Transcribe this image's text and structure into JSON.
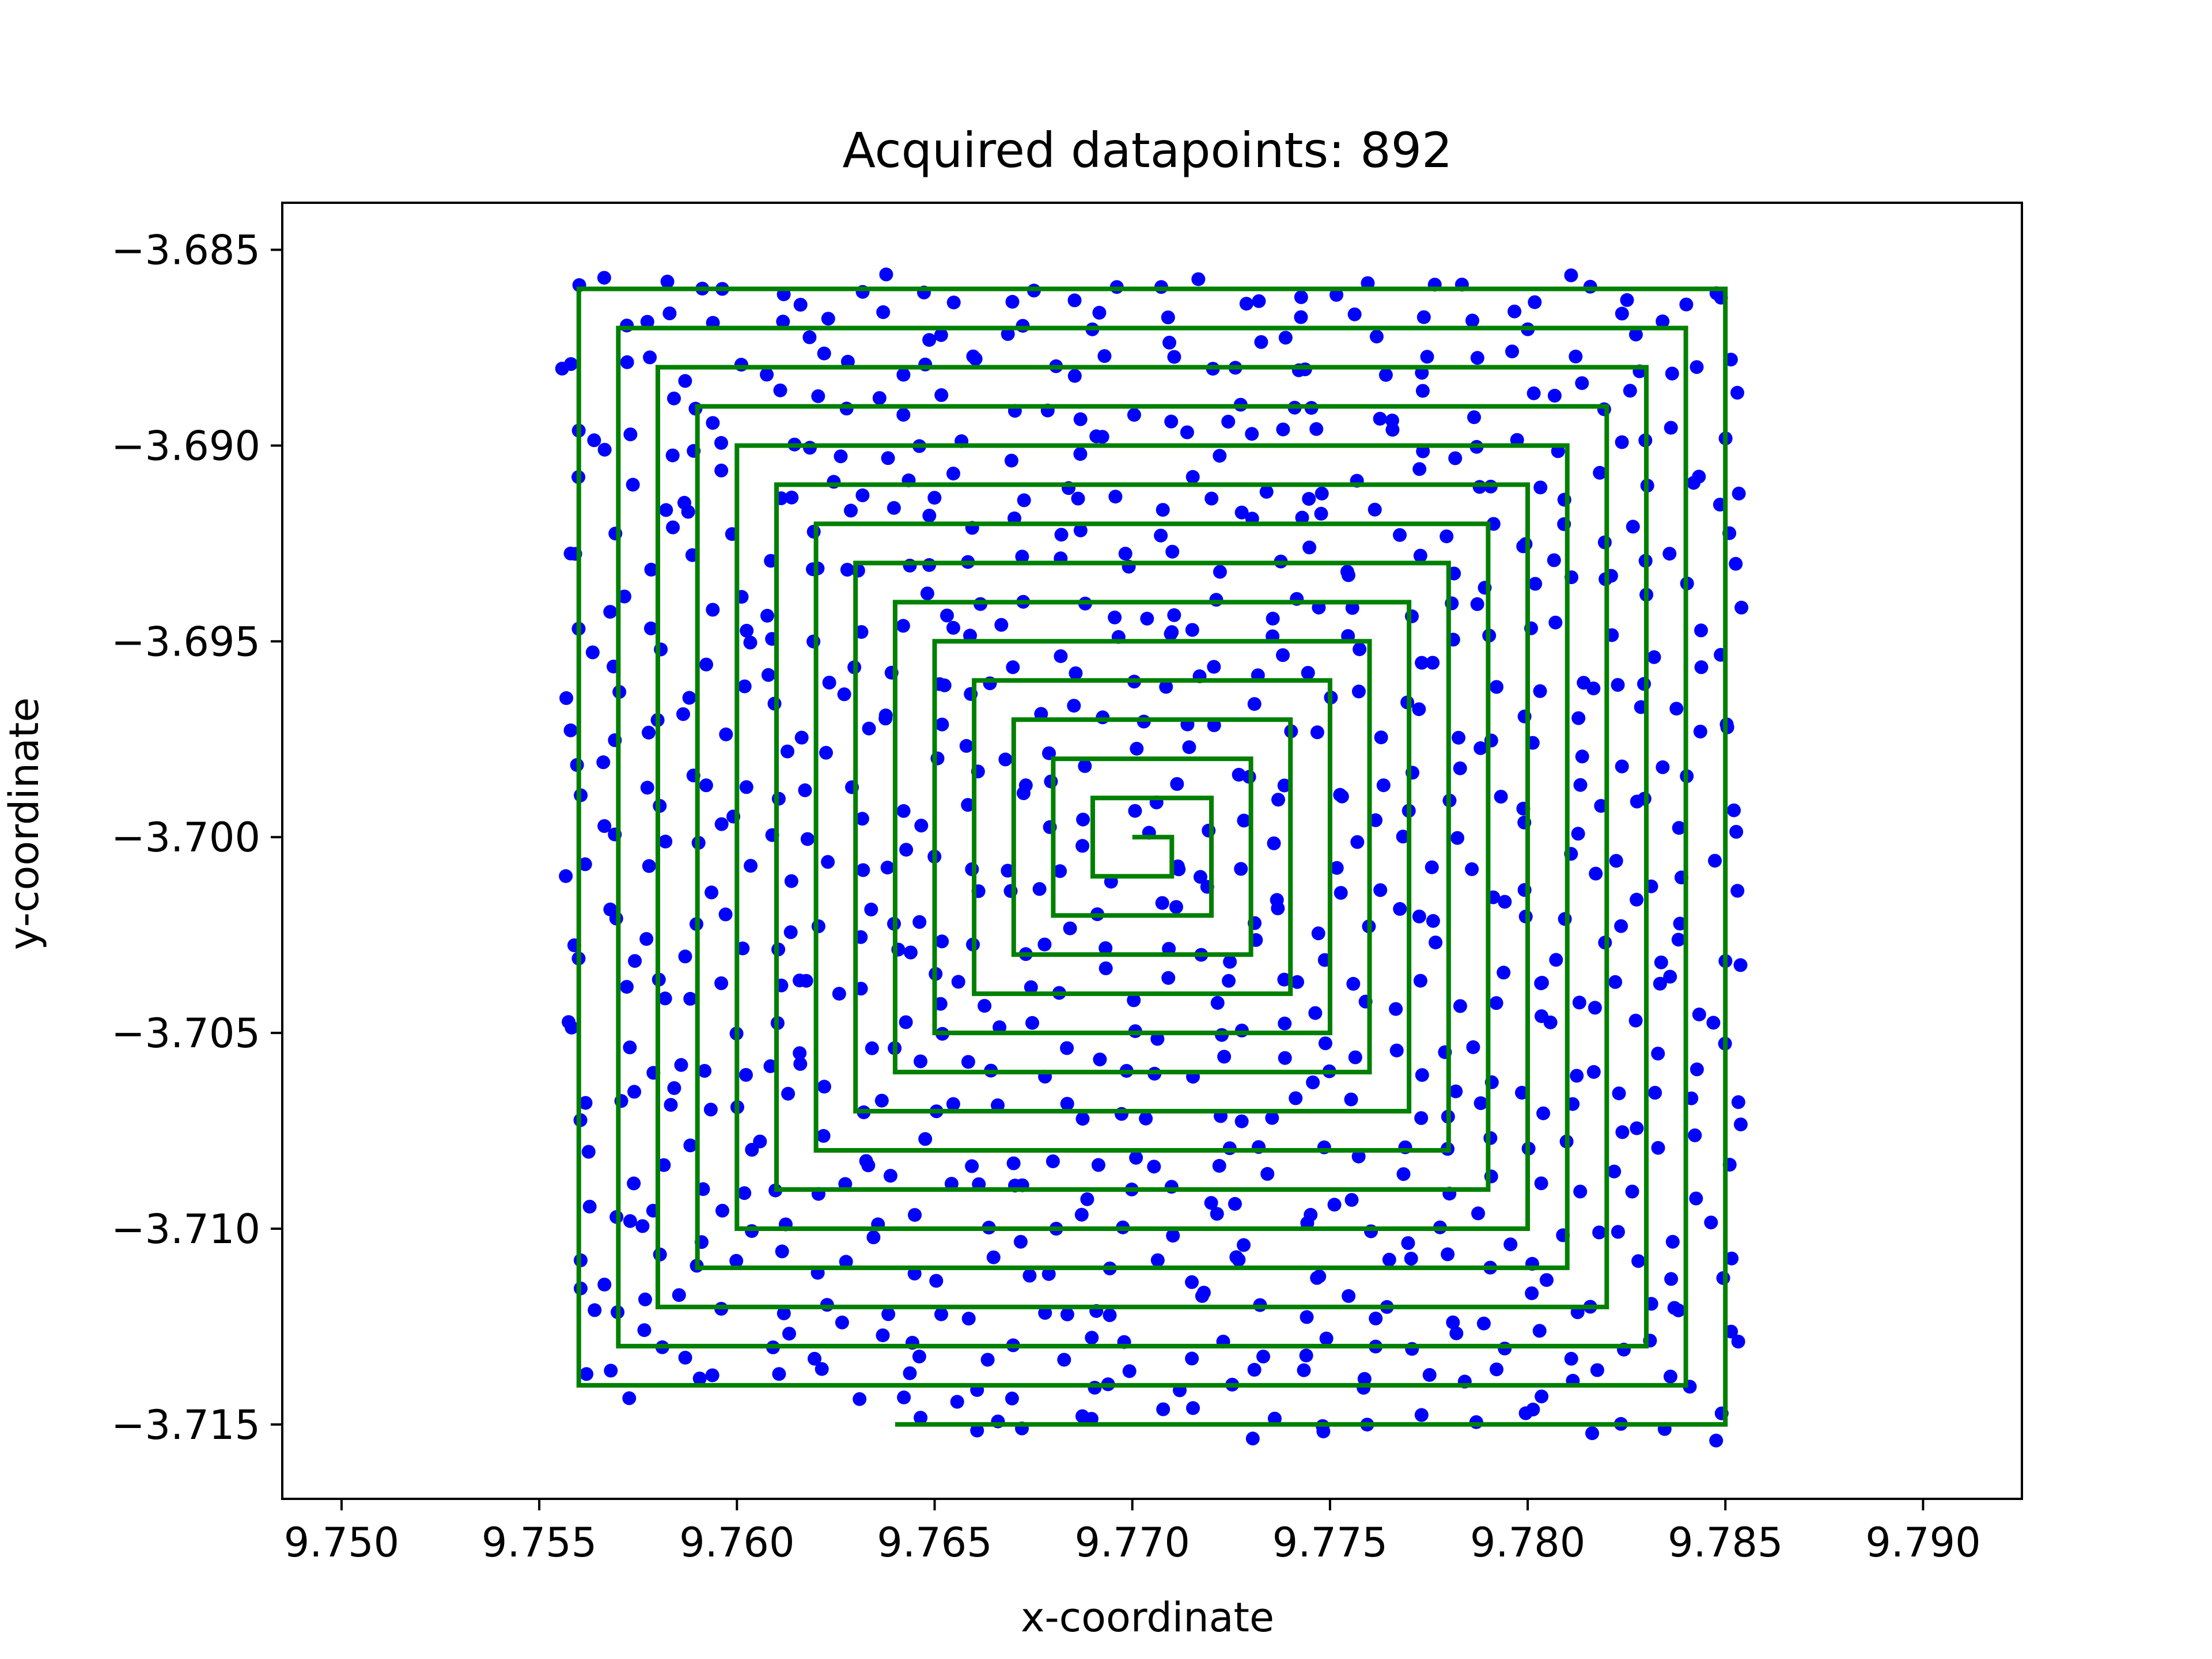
{
  "chart_data": {
    "type": "scatter",
    "title": "Acquired datapoints: 892",
    "xlabel": "x-coordinate",
    "ylabel": "y-coordinate",
    "xlim": [
      9.7485,
      9.7925
    ],
    "ylim": [
      -3.7169,
      -3.6838
    ],
    "xticks": [
      9.75,
      9.755,
      9.76,
      9.765,
      9.77,
      9.775,
      9.78,
      9.785,
      9.79
    ],
    "xtick_labels": [
      "9.750",
      "9.755",
      "9.760",
      "9.765",
      "9.770",
      "9.775",
      "9.780",
      "9.785",
      "9.790"
    ],
    "yticks": [
      -3.685,
      -3.69,
      -3.695,
      -3.7,
      -3.705,
      -3.71,
      -3.715
    ],
    "ytick_labels": [
      "−3.685",
      "−3.690",
      "−3.695",
      "−3.700",
      "−3.705",
      "−3.710",
      "−3.715"
    ],
    "grid": false,
    "legend": "none",
    "series": [
      {
        "kind": "scatter",
        "color": "#0000ff",
        "count": 892,
        "x_range": [
          9.7555,
          9.7855
        ],
        "y_range": [
          -3.7155,
          -3.6857
        ],
        "sampling": "points scattered along the spiral scan path with small random offsets"
      },
      {
        "kind": "line",
        "color": "#008000",
        "shape": "square spiral scan path",
        "center": [
          9.77,
          -3.7
        ],
        "step": 0.001,
        "x": [
          9.77,
          9.771,
          9.771,
          9.769,
          9.769,
          9.772,
          9.772,
          9.768,
          9.768,
          9.773,
          9.773,
          9.767,
          9.767,
          9.774,
          9.774,
          9.766,
          9.766,
          9.775,
          9.775,
          9.765,
          9.765,
          9.776,
          9.776,
          9.764,
          9.764,
          9.777,
          9.777,
          9.763,
          9.763,
          9.778,
          9.778,
          9.762,
          9.762,
          9.779,
          9.779,
          9.761,
          9.761,
          9.78,
          9.78,
          9.76,
          9.76,
          9.781,
          9.781,
          9.759,
          9.759,
          9.782,
          9.782,
          9.758,
          9.758,
          9.783,
          9.783,
          9.757,
          9.757,
          9.784,
          9.784,
          9.756,
          9.756,
          9.785,
          9.785,
          9.764
        ],
        "y": [
          -3.7,
          -3.7,
          -3.701,
          -3.701,
          -3.699,
          -3.699,
          -3.702,
          -3.702,
          -3.698,
          -3.698,
          -3.703,
          -3.703,
          -3.697,
          -3.697,
          -3.704,
          -3.704,
          -3.696,
          -3.696,
          -3.705,
          -3.705,
          -3.695,
          -3.695,
          -3.706,
          -3.706,
          -3.694,
          -3.694,
          -3.707,
          -3.707,
          -3.693,
          -3.693,
          -3.708,
          -3.708,
          -3.692,
          -3.692,
          -3.709,
          -3.709,
          -3.691,
          -3.691,
          -3.71,
          -3.71,
          -3.69,
          -3.69,
          -3.711,
          -3.711,
          -3.689,
          -3.689,
          -3.712,
          -3.712,
          -3.688,
          -3.688,
          -3.713,
          -3.713,
          -3.687,
          -3.687,
          -3.714,
          -3.714,
          -3.686,
          -3.686,
          -3.715,
          -3.715
        ]
      }
    ]
  }
}
